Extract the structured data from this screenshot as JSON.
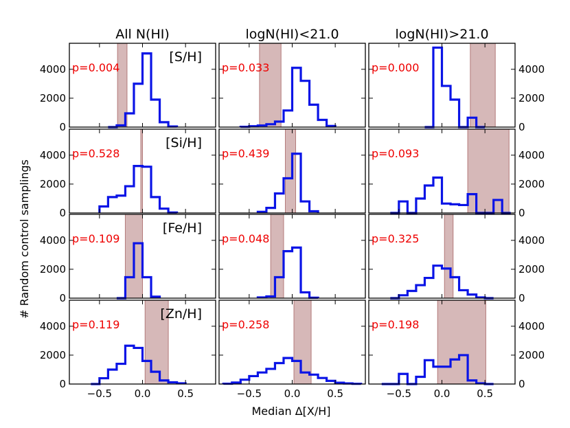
{
  "chart_data": {
    "type": "histogram-grid",
    "column_titles": [
      "All N(HI)",
      "logN(HI)<21.0",
      "logN(HI)>21.0"
    ],
    "row_labels": [
      "[S/H]",
      "[Si/H]",
      "[Fe/H]",
      "[Zn/H]"
    ],
    "xlabel": "Median Δ[X/H]",
    "ylabel": "# Random control samplings",
    "xlim": [
      -0.85,
      0.85
    ],
    "ylim": [
      0,
      5800
    ],
    "xticks": [
      -0.5,
      0.0,
      0.5
    ],
    "xtick_labels": [
      "−0.5",
      "0.0",
      "0.5"
    ],
    "yticks": [
      0,
      2000,
      4000
    ],
    "ytick_labels": [
      "0",
      "2000",
      "4000"
    ],
    "colors": {
      "histogram": "#0a14e6",
      "band_fill": "#d6b8b8",
      "band_edge": "#b37a7a",
      "pvalue": "#ee0000"
    },
    "panels": [
      {
        "row": 0,
        "col": 0,
        "pvalue": "p=0.004",
        "band": [
          -0.29,
          -0.18
        ],
        "bins": [
          [
            -0.35,
            0
          ],
          [
            -0.25,
            120
          ],
          [
            -0.15,
            950
          ],
          [
            -0.05,
            3000
          ],
          [
            0.05,
            5100
          ],
          [
            0.15,
            1900
          ],
          [
            0.25,
            340
          ],
          [
            0.35,
            40
          ]
        ]
      },
      {
        "row": 0,
        "col": 1,
        "pvalue": "p=0.033",
        "band": [
          -0.38,
          -0.13
        ],
        "bins": [
          [
            -0.55,
            20
          ],
          [
            -0.45,
            60
          ],
          [
            -0.35,
            110
          ],
          [
            -0.25,
            200
          ],
          [
            -0.15,
            380
          ],
          [
            -0.05,
            1150
          ],
          [
            0.05,
            4100
          ],
          [
            0.15,
            3200
          ],
          [
            0.25,
            1550
          ],
          [
            0.35,
            500
          ],
          [
            0.45,
            80
          ]
        ]
      },
      {
        "row": 0,
        "col": 2,
        "pvalue": "p=0.000",
        "band": [
          0.33,
          0.62
        ],
        "bins": [
          [
            -0.15,
            0
          ],
          [
            -0.05,
            5500
          ],
          [
            0.05,
            2850
          ],
          [
            0.15,
            1900
          ],
          [
            0.25,
            0
          ],
          [
            0.35,
            650
          ],
          [
            0.45,
            0
          ]
        ]
      },
      {
        "row": 1,
        "col": 0,
        "pvalue": "p=0.528",
        "band": [
          -0.02,
          0.0
        ],
        "bins": [
          [
            -0.45,
            450
          ],
          [
            -0.35,
            1100
          ],
          [
            -0.25,
            1200
          ],
          [
            -0.15,
            1850
          ],
          [
            -0.05,
            3250
          ],
          [
            0.05,
            3200
          ],
          [
            0.15,
            1100
          ],
          [
            0.25,
            300
          ],
          [
            0.35,
            30
          ]
        ]
      },
      {
        "row": 1,
        "col": 1,
        "pvalue": "p=0.439",
        "band": [
          -0.08,
          0.04
        ],
        "bins": [
          [
            -0.35,
            80
          ],
          [
            -0.25,
            350
          ],
          [
            -0.15,
            1350
          ],
          [
            -0.05,
            2400
          ],
          [
            0.05,
            4100
          ],
          [
            0.15,
            800
          ],
          [
            0.25,
            120
          ]
        ]
      },
      {
        "row": 1,
        "col": 2,
        "pvalue": "p=0.093",
        "band": [
          0.3,
          0.78
        ],
        "bins": [
          [
            -0.55,
            0
          ],
          [
            -0.45,
            800
          ],
          [
            -0.35,
            0
          ],
          [
            -0.25,
            1000
          ],
          [
            -0.15,
            1900
          ],
          [
            -0.05,
            2450
          ],
          [
            0.05,
            650
          ],
          [
            0.15,
            600
          ],
          [
            0.25,
            550
          ],
          [
            0.35,
            1300
          ],
          [
            0.45,
            0
          ],
          [
            0.55,
            0
          ],
          [
            0.65,
            900
          ],
          [
            0.75,
            0
          ]
        ]
      },
      {
        "row": 2,
        "col": 0,
        "pvalue": "p=0.109",
        "band": [
          -0.2,
          0.0
        ],
        "bins": [
          [
            -0.25,
            0
          ],
          [
            -0.15,
            1450
          ],
          [
            -0.05,
            3800
          ],
          [
            0.05,
            1450
          ],
          [
            0.15,
            100
          ]
        ]
      },
      {
        "row": 2,
        "col": 1,
        "pvalue": "p=0.048",
        "band": [
          -0.25,
          -0.1
        ],
        "bins": [
          [
            -0.35,
            50
          ],
          [
            -0.25,
            120
          ],
          [
            -0.15,
            1450
          ],
          [
            -0.05,
            3250
          ],
          [
            0.05,
            3500
          ],
          [
            0.15,
            400
          ],
          [
            0.25,
            30
          ]
        ]
      },
      {
        "row": 2,
        "col": 2,
        "pvalue": "p=0.325",
        "band": [
          0.03,
          0.13
        ],
        "bins": [
          [
            -0.55,
            0
          ],
          [
            -0.45,
            200
          ],
          [
            -0.35,
            500
          ],
          [
            -0.25,
            900
          ],
          [
            -0.15,
            1400
          ],
          [
            -0.05,
            2250
          ],
          [
            0.05,
            2050
          ],
          [
            0.15,
            1450
          ],
          [
            0.25,
            550
          ],
          [
            0.35,
            250
          ],
          [
            0.45,
            50
          ],
          [
            0.55,
            0
          ]
        ]
      },
      {
        "row": 3,
        "col": 0,
        "pvalue": "p=0.119",
        "band": [
          0.03,
          0.3
        ],
        "bins": [
          [
            -0.55,
            0
          ],
          [
            -0.45,
            400
          ],
          [
            -0.35,
            1000
          ],
          [
            -0.25,
            1400
          ],
          [
            -0.15,
            2650
          ],
          [
            -0.05,
            2500
          ],
          [
            0.05,
            1600
          ],
          [
            0.15,
            850
          ],
          [
            0.25,
            250
          ],
          [
            0.35,
            120
          ],
          [
            0.45,
            50
          ]
        ]
      },
      {
        "row": 3,
        "col": 1,
        "pvalue": "p=0.258",
        "band": [
          0.02,
          0.22
        ],
        "bins": [
          [
            -0.75,
            20
          ],
          [
            -0.65,
            100
          ],
          [
            -0.55,
            300
          ],
          [
            -0.45,
            550
          ],
          [
            -0.35,
            800
          ],
          [
            -0.25,
            1050
          ],
          [
            -0.15,
            1450
          ],
          [
            -0.05,
            1800
          ],
          [
            0.05,
            1600
          ],
          [
            0.15,
            800
          ],
          [
            0.25,
            650
          ],
          [
            0.35,
            420
          ],
          [
            0.45,
            220
          ],
          [
            0.55,
            90
          ],
          [
            0.65,
            40
          ],
          [
            0.75,
            15
          ]
        ]
      },
      {
        "row": 3,
        "col": 2,
        "pvalue": "p=0.198",
        "band": [
          -0.05,
          0.51
        ],
        "bins": [
          [
            -0.65,
            0
          ],
          [
            -0.55,
            0
          ],
          [
            -0.45,
            700
          ],
          [
            -0.35,
            0
          ],
          [
            -0.25,
            500
          ],
          [
            -0.15,
            1650
          ],
          [
            -0.05,
            1200
          ],
          [
            0.05,
            1200
          ],
          [
            0.15,
            1700
          ],
          [
            0.25,
            2000
          ],
          [
            0.35,
            250
          ],
          [
            0.45,
            50
          ],
          [
            0.55,
            0
          ]
        ]
      }
    ]
  }
}
